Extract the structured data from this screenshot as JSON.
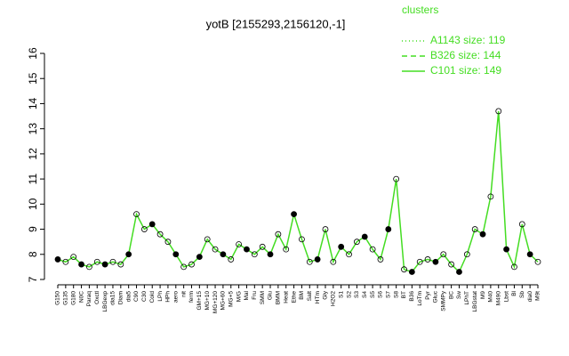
{
  "chart_data": {
    "type": "line",
    "title": "yotB [2155293,2156120,-1]",
    "legend_title": "clusters",
    "legend": [
      {
        "name": "A1143 size: 119",
        "dash": "1,3"
      },
      {
        "name": "B326 size: 144",
        "dash": "6,4"
      },
      {
        "name": "C101 size: 149",
        "dash": ""
      }
    ],
    "categories": [
      "G150",
      "G135",
      "G180",
      "N0C",
      "Paraq",
      "Oxctl",
      "LBGexp",
      "dia15",
      "Diam",
      "dia5",
      "C90",
      "C30",
      "Cold",
      "LPh",
      "HPh",
      "aero",
      "nit",
      "ferm",
      "GM+15",
      "MG+10",
      "MG+120",
      "MG+60",
      "MG+5",
      "M/G",
      "Mal",
      "Fru",
      "SMM",
      "Glu",
      "BMM",
      "Heat",
      "Ethe",
      "BM",
      "Salt",
      "HTm",
      "Gly",
      "H2O2",
      "S1",
      "S2",
      "S3",
      "S4",
      "S5",
      "S6",
      "S7",
      "S8",
      "BT",
      "B36",
      "LoTm",
      "Pyr",
      "Gluc",
      "SMMPy",
      "BC",
      "Sw",
      "LPhT",
      "LBGstat",
      "M9",
      "M40",
      "M490",
      "Lbst",
      "Bl",
      "Sb",
      "dia0",
      "M9t"
    ],
    "series": [
      {
        "name": "C101 size: 149",
        "color": "#44dd22",
        "values": [
          7.8,
          7.7,
          7.9,
          7.6,
          7.5,
          7.7,
          7.6,
          7.7,
          7.6,
          8.0,
          9.6,
          9.0,
          9.2,
          8.8,
          8.5,
          8.0,
          7.5,
          7.6,
          7.9,
          8.6,
          8.2,
          8.0,
          7.8,
          8.4,
          8.2,
          8.0,
          8.3,
          8.0,
          8.8,
          8.2,
          9.6,
          8.6,
          7.7,
          7.8,
          9.0,
          7.7,
          8.3,
          8.0,
          8.5,
          8.7,
          8.2,
          7.8,
          9.0,
          11.0,
          7.4,
          7.3,
          7.7,
          7.8,
          7.7,
          8.0,
          7.6,
          7.3,
          8.0,
          9.0,
          8.8,
          10.3,
          13.7,
          8.2,
          7.5,
          9.2,
          8.0,
          7.7
        ]
      }
    ],
    "ylim": [
      7,
      16
    ],
    "yticks": [
      7,
      8,
      9,
      10,
      11,
      12,
      13,
      14,
      15,
      16
    ]
  }
}
